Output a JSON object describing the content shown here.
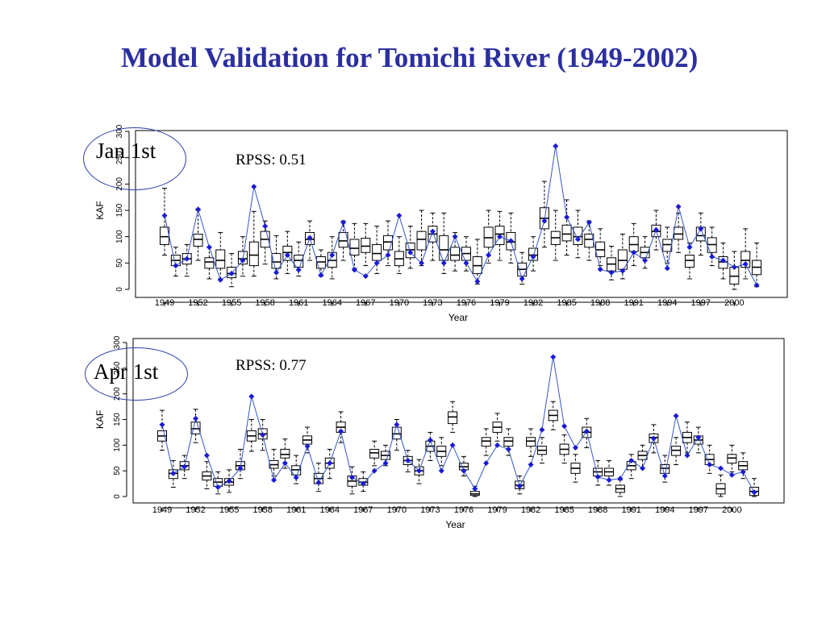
{
  "title": "Model Validation for Tomichi River (1949-2002)",
  "charts": [
    {
      "label": "Jan 1st",
      "rpss": "RPSS: 0.51"
    },
    {
      "label": "Apr 1st",
      "rpss": "RPSS: 0.77"
    }
  ],
  "colors": {
    "title": "#2b2fa0",
    "observed": "#1a1ad6",
    "observed_line": "#3556c9",
    "box": "#000000",
    "oval": "#2c3fa8"
  },
  "chart_data": [
    {
      "type": "box",
      "label": "Jan 1st",
      "annotation": "RPSS: 0.51",
      "xlabel": "Year",
      "ylabel": "KAF",
      "ylim": [
        0,
        300
      ],
      "yticks": [
        0,
        50,
        100,
        150,
        200,
        250,
        300
      ],
      "xticks": [
        1949,
        1952,
        1955,
        1958,
        1961,
        1964,
        1967,
        1970,
        1973,
        1976,
        1979,
        1982,
        1985,
        1988,
        1991,
        1994,
        1997,
        2000
      ],
      "years": [
        1949,
        1950,
        1951,
        1952,
        1953,
        1954,
        1955,
        1956,
        1957,
        1958,
        1959,
        1960,
        1961,
        1962,
        1963,
        1964,
        1965,
        1966,
        1967,
        1968,
        1969,
        1970,
        1971,
        1972,
        1973,
        1974,
        1975,
        1976,
        1977,
        1978,
        1979,
        1980,
        1981,
        1982,
        1983,
        1984,
        1985,
        1986,
        1987,
        1988,
        1989,
        1990,
        1991,
        1992,
        1993,
        1994,
        1995,
        1996,
        1997,
        1998,
        1999,
        2000,
        2001,
        2002
      ],
      "observed": [
        140,
        45,
        58,
        152,
        80,
        18,
        30,
        55,
        195,
        120,
        32,
        65,
        37,
        98,
        27,
        65,
        127,
        37,
        25,
        50,
        65,
        140,
        70,
        50,
        110,
        50,
        100,
        50,
        15,
        65,
        100,
        92,
        20,
        62,
        130,
        272,
        137,
        95,
        127,
        38,
        32,
        35,
        70,
        55,
        113,
        40,
        157,
        80,
        115,
        62,
        55,
        42,
        48,
        8
      ],
      "boxes": [
        {
          "q1": 85,
          "med": 100,
          "q3": 118,
          "lo": 65,
          "hi": 192
        },
        {
          "q1": 45,
          "med": 55,
          "q3": 65,
          "lo": 25,
          "hi": 80
        },
        {
          "q1": 48,
          "med": 58,
          "q3": 68,
          "lo": 25,
          "hi": 85
        },
        {
          "q1": 82,
          "med": 95,
          "q3": 105,
          "lo": 55,
          "hi": 150
        },
        {
          "q1": 40,
          "med": 52,
          "q3": 60,
          "lo": 20,
          "hi": 80
        },
        {
          "q1": 40,
          "med": 55,
          "q3": 75,
          "lo": 20,
          "hi": 108
        },
        {
          "q1": 22,
          "med": 30,
          "q3": 42,
          "lo": 5,
          "hi": 68
        },
        {
          "q1": 48,
          "med": 58,
          "q3": 72,
          "lo": 25,
          "hi": 100
        },
        {
          "q1": 45,
          "med": 65,
          "q3": 90,
          "lo": 25,
          "hi": 148
        },
        {
          "q1": 80,
          "med": 95,
          "q3": 110,
          "lo": 48,
          "hi": 130
        },
        {
          "q1": 40,
          "med": 52,
          "q3": 68,
          "lo": 20,
          "hi": 102
        },
        {
          "q1": 55,
          "med": 70,
          "q3": 82,
          "lo": 30,
          "hi": 110
        },
        {
          "q1": 42,
          "med": 55,
          "q3": 65,
          "lo": 25,
          "hi": 90
        },
        {
          "q1": 85,
          "med": 95,
          "q3": 108,
          "lo": 55,
          "hi": 130
        },
        {
          "q1": 40,
          "med": 52,
          "q3": 62,
          "lo": 25,
          "hi": 75
        },
        {
          "q1": 42,
          "med": 55,
          "q3": 70,
          "lo": 20,
          "hi": 100
        },
        {
          "q1": 80,
          "med": 92,
          "q3": 108,
          "lo": 55,
          "hi": 130
        },
        {
          "q1": 65,
          "med": 78,
          "q3": 95,
          "lo": 40,
          "hi": 125
        },
        {
          "q1": 70,
          "med": 82,
          "q3": 97,
          "lo": 45,
          "hi": 125
        },
        {
          "q1": 55,
          "med": 68,
          "q3": 85,
          "lo": 30,
          "hi": 120
        },
        {
          "q1": 75,
          "med": 90,
          "q3": 102,
          "lo": 45,
          "hi": 130
        },
        {
          "q1": 45,
          "med": 58,
          "q3": 72,
          "lo": 30,
          "hi": 100
        },
        {
          "q1": 60,
          "med": 75,
          "q3": 88,
          "lo": 40,
          "hi": 120
        },
        {
          "q1": 75,
          "med": 95,
          "q3": 110,
          "lo": 45,
          "hi": 150
        },
        {
          "q1": 90,
          "med": 105,
          "q3": 120,
          "lo": 55,
          "hi": 145
        },
        {
          "q1": 55,
          "med": 75,
          "q3": 102,
          "lo": 30,
          "hi": 145
        },
        {
          "q1": 55,
          "med": 65,
          "q3": 80,
          "lo": 35,
          "hi": 108
        },
        {
          "q1": 55,
          "med": 68,
          "q3": 80,
          "lo": 35,
          "hi": 100
        },
        {
          "q1": 30,
          "med": 45,
          "q3": 62,
          "lo": 10,
          "hi": 95
        },
        {
          "q1": 80,
          "med": 98,
          "q3": 118,
          "lo": 50,
          "hi": 150
        },
        {
          "q1": 85,
          "med": 105,
          "q3": 120,
          "lo": 55,
          "hi": 148
        },
        {
          "q1": 75,
          "med": 90,
          "q3": 108,
          "lo": 50,
          "hi": 145
        },
        {
          "q1": 25,
          "med": 38,
          "q3": 50,
          "lo": 10,
          "hi": 70
        },
        {
          "q1": 55,
          "med": 65,
          "q3": 78,
          "lo": 35,
          "hi": 100
        },
        {
          "q1": 115,
          "med": 135,
          "q3": 155,
          "lo": 80,
          "hi": 205
        },
        {
          "q1": 85,
          "med": 98,
          "q3": 110,
          "lo": 55,
          "hi": 150
        },
        {
          "q1": 92,
          "med": 105,
          "q3": 122,
          "lo": 65,
          "hi": 170
        },
        {
          "q1": 85,
          "med": 100,
          "q3": 118,
          "lo": 60,
          "hi": 150
        },
        {
          "q1": 80,
          "med": 95,
          "q3": 105,
          "lo": 55,
          "hi": 130
        },
        {
          "q1": 62,
          "med": 75,
          "q3": 90,
          "lo": 45,
          "hi": 115
        },
        {
          "q1": 35,
          "med": 48,
          "q3": 60,
          "lo": 18,
          "hi": 82
        },
        {
          "q1": 38,
          "med": 55,
          "q3": 75,
          "lo": 20,
          "hi": 105
        },
        {
          "q1": 72,
          "med": 85,
          "q3": 100,
          "lo": 45,
          "hi": 125
        },
        {
          "q1": 60,
          "med": 70,
          "q3": 80,
          "lo": 40,
          "hi": 100
        },
        {
          "q1": 100,
          "med": 110,
          "q3": 122,
          "lo": 75,
          "hi": 150
        },
        {
          "q1": 72,
          "med": 85,
          "q3": 95,
          "lo": 50,
          "hi": 118
        },
        {
          "q1": 95,
          "med": 105,
          "q3": 118,
          "lo": 70,
          "hi": 145
        },
        {
          "q1": 42,
          "med": 55,
          "q3": 65,
          "lo": 20,
          "hi": 88
        },
        {
          "q1": 92,
          "med": 102,
          "q3": 118,
          "lo": 65,
          "hi": 145
        },
        {
          "q1": 70,
          "med": 85,
          "q3": 98,
          "lo": 45,
          "hi": 118
        },
        {
          "q1": 40,
          "med": 52,
          "q3": 62,
          "lo": 20,
          "hi": 88
        },
        {
          "q1": 10,
          "med": 25,
          "q3": 42,
          "lo": 0,
          "hi": 72
        },
        {
          "q1": 42,
          "med": 55,
          "q3": 72,
          "lo": 20,
          "hi": 115
        },
        {
          "q1": 28,
          "med": 42,
          "q3": 55,
          "lo": 5,
          "hi": 88
        }
      ]
    },
    {
      "type": "box",
      "label": "Apr 1st",
      "annotation": "RPSS: 0.77",
      "xlabel": "Year",
      "ylabel": "KAF",
      "ylim": [
        0,
        300
      ],
      "yticks": [
        0,
        50,
        100,
        150,
        200,
        250,
        300
      ],
      "xticks": [
        1949,
        1952,
        1955,
        1958,
        1961,
        1964,
        1967,
        1970,
        1973,
        1976,
        1979,
        1982,
        1985,
        1988,
        1991,
        1994,
        1997,
        2000
      ],
      "years": [
        1949,
        1950,
        1951,
        1952,
        1953,
        1954,
        1955,
        1956,
        1957,
        1958,
        1959,
        1960,
        1961,
        1962,
        1963,
        1964,
        1965,
        1966,
        1967,
        1968,
        1969,
        1970,
        1971,
        1972,
        1973,
        1974,
        1975,
        1976,
        1977,
        1978,
        1979,
        1980,
        1981,
        1982,
        1983,
        1984,
        1985,
        1986,
        1987,
        1988,
        1989,
        1990,
        1991,
        1992,
        1993,
        1994,
        1995,
        1996,
        1997,
        1998,
        1999,
        2000,
        2001,
        2002
      ],
      "observed": [
        140,
        45,
        58,
        152,
        80,
        18,
        30,
        55,
        195,
        120,
        32,
        65,
        37,
        98,
        27,
        65,
        127,
        37,
        25,
        50,
        65,
        140,
        70,
        50,
        110,
        50,
        100,
        50,
        15,
        65,
        100,
        92,
        20,
        62,
        130,
        272,
        137,
        95,
        127,
        38,
        32,
        35,
        70,
        55,
        113,
        40,
        157,
        80,
        115,
        62,
        55,
        42,
        48,
        8
      ],
      "boxes": [
        {
          "q1": 108,
          "med": 118,
          "q3": 128,
          "lo": 90,
          "hi": 168
        },
        {
          "q1": 35,
          "med": 45,
          "q3": 52,
          "lo": 18,
          "hi": 70
        },
        {
          "q1": 52,
          "med": 60,
          "q3": 68,
          "lo": 35,
          "hi": 80
        },
        {
          "q1": 122,
          "med": 132,
          "q3": 145,
          "lo": 105,
          "hi": 170
        },
        {
          "q1": 32,
          "med": 40,
          "q3": 48,
          "lo": 15,
          "hi": 68
        },
        {
          "q1": 20,
          "med": 28,
          "q3": 35,
          "lo": 5,
          "hi": 48
        },
        {
          "q1": 22,
          "med": 28,
          "q3": 35,
          "lo": 8,
          "hi": 52
        },
        {
          "q1": 52,
          "med": 60,
          "q3": 68,
          "lo": 35,
          "hi": 92
        },
        {
          "q1": 108,
          "med": 118,
          "q3": 128,
          "lo": 88,
          "hi": 150
        },
        {
          "q1": 112,
          "med": 122,
          "q3": 132,
          "lo": 90,
          "hi": 150
        },
        {
          "q1": 55,
          "med": 62,
          "q3": 70,
          "lo": 40,
          "hi": 92
        },
        {
          "q1": 75,
          "med": 82,
          "q3": 92,
          "lo": 55,
          "hi": 112
        },
        {
          "q1": 42,
          "med": 52,
          "q3": 60,
          "lo": 25,
          "hi": 80
        },
        {
          "q1": 102,
          "med": 110,
          "q3": 118,
          "lo": 85,
          "hi": 135
        },
        {
          "q1": 25,
          "med": 35,
          "q3": 45,
          "lo": 10,
          "hi": 65
        },
        {
          "q1": 55,
          "med": 65,
          "q3": 75,
          "lo": 35,
          "hi": 92
        },
        {
          "q1": 125,
          "med": 135,
          "q3": 145,
          "lo": 105,
          "hi": 165
        },
        {
          "q1": 20,
          "med": 30,
          "q3": 40,
          "lo": 5,
          "hi": 58
        },
        {
          "q1": 22,
          "med": 28,
          "q3": 35,
          "lo": 10,
          "hi": 48
        },
        {
          "q1": 75,
          "med": 85,
          "q3": 92,
          "lo": 60,
          "hi": 108
        },
        {
          "q1": 72,
          "med": 80,
          "q3": 88,
          "lo": 60,
          "hi": 100
        },
        {
          "q1": 112,
          "med": 122,
          "q3": 135,
          "lo": 90,
          "hi": 150
        },
        {
          "q1": 62,
          "med": 70,
          "q3": 78,
          "lo": 48,
          "hi": 90
        },
        {
          "q1": 42,
          "med": 50,
          "q3": 58,
          "lo": 25,
          "hi": 72
        },
        {
          "q1": 88,
          "med": 98,
          "q3": 108,
          "lo": 70,
          "hi": 125
        },
        {
          "q1": 78,
          "med": 88,
          "q3": 98,
          "lo": 60,
          "hi": 115
        },
        {
          "q1": 142,
          "med": 155,
          "q3": 165,
          "lo": 125,
          "hi": 185
        },
        {
          "q1": 52,
          "med": 58,
          "q3": 65,
          "lo": 40,
          "hi": 78
        },
        {
          "q1": 2,
          "med": 5,
          "q3": 10,
          "lo": 0,
          "hi": 20
        },
        {
          "q1": 98,
          "med": 108,
          "q3": 115,
          "lo": 80,
          "hi": 132
        },
        {
          "q1": 125,
          "med": 135,
          "q3": 145,
          "lo": 108,
          "hi": 162
        },
        {
          "q1": 98,
          "med": 108,
          "q3": 115,
          "lo": 80,
          "hi": 132
        },
        {
          "q1": 15,
          "med": 22,
          "q3": 30,
          "lo": 5,
          "hi": 40
        },
        {
          "q1": 98,
          "med": 108,
          "q3": 115,
          "lo": 78,
          "hi": 132
        },
        {
          "q1": 82,
          "med": 90,
          "q3": 98,
          "lo": 65,
          "hi": 115
        },
        {
          "q1": 148,
          "med": 158,
          "q3": 168,
          "lo": 130,
          "hi": 185
        },
        {
          "q1": 82,
          "med": 92,
          "q3": 102,
          "lo": 65,
          "hi": 120
        },
        {
          "q1": 45,
          "med": 55,
          "q3": 65,
          "lo": 28,
          "hi": 82
        },
        {
          "q1": 115,
          "med": 125,
          "q3": 135,
          "lo": 95,
          "hi": 152
        },
        {
          "q1": 40,
          "med": 48,
          "q3": 55,
          "lo": 22,
          "hi": 70
        },
        {
          "q1": 40,
          "med": 48,
          "q3": 55,
          "lo": 22,
          "hi": 70
        },
        {
          "q1": 8,
          "med": 15,
          "q3": 22,
          "lo": 0,
          "hi": 32
        },
        {
          "q1": 52,
          "med": 60,
          "q3": 68,
          "lo": 35,
          "hi": 82
        },
        {
          "q1": 72,
          "med": 80,
          "q3": 88,
          "lo": 55,
          "hi": 100
        },
        {
          "q1": 105,
          "med": 115,
          "q3": 122,
          "lo": 85,
          "hi": 140
        },
        {
          "q1": 45,
          "med": 55,
          "q3": 62,
          "lo": 28,
          "hi": 80
        },
        {
          "q1": 80,
          "med": 90,
          "q3": 98,
          "lo": 62,
          "hi": 115
        },
        {
          "q1": 105,
          "med": 115,
          "q3": 125,
          "lo": 85,
          "hi": 145
        },
        {
          "q1": 102,
          "med": 110,
          "q3": 118,
          "lo": 85,
          "hi": 135
        },
        {
          "q1": 62,
          "med": 72,
          "q3": 82,
          "lo": 45,
          "hi": 100
        },
        {
          "q1": 5,
          "med": 15,
          "q3": 25,
          "lo": 0,
          "hi": 42
        },
        {
          "q1": 65,
          "med": 75,
          "q3": 82,
          "lo": 48,
          "hi": 100
        },
        {
          "q1": 52,
          "med": 60,
          "q3": 68,
          "lo": 35,
          "hi": 85
        },
        {
          "q1": 2,
          "med": 10,
          "q3": 18,
          "lo": 0,
          "hi": 35
        }
      ]
    }
  ]
}
